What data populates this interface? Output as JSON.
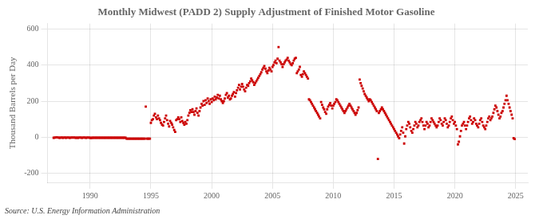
{
  "chart_data": {
    "type": "scatter",
    "title": "Monthly Midwest (PADD 2) Supply Adjustment of Finished Motor Gasoline",
    "ylabel": "Thousand Barrels per Day",
    "annotation": "Source: U.S. Energy Information Administration",
    "color": "#cc0000",
    "marker": "square",
    "grid": true,
    "xlim": [
      1986.5,
      2026
    ],
    "ylim": [
      -250,
      630
    ],
    "xticks": [
      1990,
      1995,
      2000,
      2005,
      2010,
      2015,
      2020,
      2025
    ],
    "yticks": [
      -200,
      0,
      200,
      400,
      600
    ],
    "x": [
      1987.0,
      1987.08,
      1987.17,
      1987.25,
      1987.33,
      1987.42,
      1987.5,
      1987.58,
      1987.67,
      1987.75,
      1987.83,
      1987.92,
      1988.0,
      1988.08,
      1988.17,
      1988.25,
      1988.33,
      1988.42,
      1988.5,
      1988.58,
      1988.67,
      1988.75,
      1988.83,
      1988.92,
      1989.0,
      1989.08,
      1989.17,
      1989.25,
      1989.33,
      1989.42,
      1989.5,
      1989.58,
      1989.67,
      1989.75,
      1989.83,
      1989.92,
      1990.0,
      1990.08,
      1990.17,
      1990.25,
      1990.33,
      1990.42,
      1990.5,
      1990.58,
      1990.67,
      1990.75,
      1990.83,
      1990.92,
      1991.0,
      1991.08,
      1991.17,
      1991.25,
      1991.33,
      1991.42,
      1991.5,
      1991.58,
      1991.67,
      1991.75,
      1991.83,
      1991.92,
      1992.0,
      1992.08,
      1992.17,
      1992.25,
      1992.33,
      1992.42,
      1992.5,
      1992.58,
      1992.67,
      1992.75,
      1992.83,
      1992.92,
      1993.0,
      1993.08,
      1993.17,
      1993.25,
      1993.33,
      1993.42,
      1993.5,
      1993.58,
      1993.67,
      1993.75,
      1993.83,
      1993.92,
      1994.0,
      1994.08,
      1994.17,
      1994.25,
      1994.33,
      1994.42,
      1994.5,
      1994.58,
      1994.67,
      1994.75,
      1994.83,
      1994.92,
      1995.0,
      1995.08,
      1995.17,
      1995.25,
      1995.33,
      1995.42,
      1995.5,
      1995.58,
      1995.67,
      1995.75,
      1995.83,
      1995.92,
      1996.0,
      1996.08,
      1996.17,
      1996.25,
      1996.33,
      1996.42,
      1996.5,
      1996.58,
      1996.67,
      1996.75,
      1996.83,
      1996.92,
      1997.0,
      1997.08,
      1997.17,
      1997.25,
      1997.33,
      1997.42,
      1997.5,
      1997.58,
      1997.67,
      1997.75,
      1997.83,
      1997.92,
      1998.0,
      1998.08,
      1998.17,
      1998.25,
      1998.33,
      1998.42,
      1998.5,
      1998.58,
      1998.67,
      1998.75,
      1998.83,
      1998.92,
      1999.0,
      1999.08,
      1999.17,
      1999.25,
      1999.33,
      1999.42,
      1999.5,
      1999.58,
      1999.67,
      1999.75,
      1999.83,
      1999.92,
      2000.0,
      2000.08,
      2000.17,
      2000.25,
      2000.33,
      2000.42,
      2000.5,
      2000.58,
      2000.67,
      2000.75,
      2000.83,
      2000.92,
      2001.0,
      2001.08,
      2001.17,
      2001.25,
      2001.33,
      2001.42,
      2001.5,
      2001.58,
      2001.67,
      2001.75,
      2001.83,
      2001.92,
      2002.0,
      2002.08,
      2002.17,
      2002.25,
      2002.33,
      2002.42,
      2002.5,
      2002.58,
      2002.67,
      2002.75,
      2002.83,
      2002.92,
      2003.0,
      2003.08,
      2003.17,
      2003.25,
      2003.33,
      2003.42,
      2003.5,
      2003.58,
      2003.67,
      2003.75,
      2003.83,
      2003.92,
      2004.0,
      2004.08,
      2004.17,
      2004.25,
      2004.33,
      2004.42,
      2004.5,
      2004.58,
      2004.67,
      2004.75,
      2004.83,
      2004.92,
      2005.0,
      2005.08,
      2005.17,
      2005.25,
      2005.33,
      2005.42,
      2005.5,
      2005.58,
      2005.67,
      2005.75,
      2005.83,
      2005.92,
      2006.0,
      2006.08,
      2006.17,
      2006.25,
      2006.33,
      2006.42,
      2006.5,
      2006.58,
      2006.67,
      2006.75,
      2006.83,
      2006.92,
      2007.0,
      2007.08,
      2007.17,
      2007.25,
      2007.33,
      2007.42,
      2007.5,
      2007.58,
      2007.67,
      2007.75,
      2007.83,
      2007.92,
      2008.0,
      2008.08,
      2008.17,
      2008.25,
      2008.33,
      2008.42,
      2008.5,
      2008.58,
      2008.67,
      2008.75,
      2008.83,
      2008.92,
      2009.0,
      2009.08,
      2009.17,
      2009.25,
      2009.33,
      2009.42,
      2009.5,
      2009.58,
      2009.67,
      2009.75,
      2009.83,
      2009.92,
      2010.0,
      2010.08,
      2010.17,
      2010.25,
      2010.33,
      2010.42,
      2010.5,
      2010.58,
      2010.67,
      2010.75,
      2010.83,
      2010.92,
      2011.0,
      2011.08,
      2011.17,
      2011.25,
      2011.33,
      2011.42,
      2011.5,
      2011.58,
      2011.67,
      2011.75,
      2011.83,
      2011.92,
      2012.0,
      2012.08,
      2012.17,
      2012.25,
      2012.33,
      2012.42,
      2012.5,
      2012.58,
      2012.67,
      2012.75,
      2012.83,
      2012.92,
      2013.0,
      2013.08,
      2013.17,
      2013.25,
      2013.33,
      2013.42,
      2013.5,
      2013.58,
      2013.67,
      2013.75,
      2013.83,
      2013.92,
      2014.0,
      2014.08,
      2014.17,
      2014.25,
      2014.33,
      2014.42,
      2014.5,
      2014.58,
      2014.67,
      2014.75,
      2014.83,
      2014.92,
      2015.0,
      2015.08,
      2015.17,
      2015.25,
      2015.33,
      2015.42,
      2015.5,
      2015.58,
      2015.67,
      2015.75,
      2015.83,
      2015.92,
      2016.0,
      2016.08,
      2016.17,
      2016.25,
      2016.33,
      2016.42,
      2016.5,
      2016.58,
      2016.67,
      2016.75,
      2016.83,
      2016.92,
      2017.0,
      2017.08,
      2017.17,
      2017.25,
      2017.33,
      2017.42,
      2017.5,
      2017.58,
      2017.67,
      2017.75,
      2017.83,
      2017.92,
      2018.0,
      2018.08,
      2018.17,
      2018.25,
      2018.33,
      2018.42,
      2018.5,
      2018.58,
      2018.67,
      2018.75,
      2018.83,
      2018.92,
      2019.0,
      2019.08,
      2019.17,
      2019.25,
      2019.33,
      2019.42,
      2019.5,
      2019.58,
      2019.67,
      2019.75,
      2019.83,
      2019.92,
      2020.0,
      2020.08,
      2020.17,
      2020.25,
      2020.33,
      2020.42,
      2020.5,
      2020.58,
      2020.67,
      2020.75,
      2020.83,
      2020.92,
      2021.0,
      2021.08,
      2021.17,
      2021.25,
      2021.33,
      2021.42,
      2021.5,
      2021.58,
      2021.67,
      2021.75,
      2021.83,
      2021.92,
      2022.0,
      2022.08,
      2022.17,
      2022.25,
      2022.33,
      2022.42,
      2022.5,
      2022.58,
      2022.67,
      2022.75,
      2022.83,
      2022.92,
      2023.0,
      2023.08,
      2023.17,
      2023.25,
      2023.33,
      2023.42,
      2023.5,
      2023.58,
      2023.67,
      2023.75,
      2023.83,
      2023.92,
      2024.0,
      2024.08,
      2024.17,
      2024.25,
      2024.33,
      2024.42,
      2024.5,
      2024.58,
      2024.67,
      2024.75,
      2024.83,
      2024.92
    ],
    "values": [
      -3,
      -2,
      -1,
      0,
      -1,
      -2,
      -3,
      -2,
      -1,
      -3,
      -2,
      -1,
      -3,
      -2,
      -1,
      -2,
      -3,
      -2,
      -1,
      -2,
      -1,
      -2,
      -3,
      -2,
      -3,
      -2,
      -1,
      -2,
      -3,
      -2,
      -1,
      -2,
      -3,
      -2,
      -1,
      -2,
      -3,
      -4,
      -3,
      -2,
      -3,
      -2,
      -3,
      -2,
      -3,
      -2,
      -3,
      -2,
      -3,
      -2,
      -3,
      -2,
      -3,
      -2,
      -3,
      -2,
      -3,
      -2,
      -3,
      -2,
      -3,
      -2,
      -3,
      -2,
      -3,
      -2,
      -3,
      -2,
      -3,
      -2,
      -3,
      -2,
      -8,
      -8,
      -8,
      -8,
      -8,
      -8,
      -8,
      -8,
      -8,
      -8,
      -8,
      -8,
      -8,
      -8,
      -8,
      -8,
      -8,
      -8,
      -8,
      170,
      -8,
      -8,
      -8,
      -8,
      80,
      95,
      100,
      120,
      130,
      110,
      100,
      120,
      105,
      95,
      80,
      70,
      65,
      85,
      105,
      120,
      95,
      75,
      60,
      90,
      80,
      70,
      55,
      40,
      30,
      95,
      100,
      110,
      100,
      85,
      110,
      90,
      80,
      70,
      85,
      75,
      95,
      120,
      135,
      150,
      140,
      155,
      140,
      125,
      145,
      160,
      135,
      120,
      145,
      165,
      185,
      175,
      200,
      180,
      205,
      190,
      215,
      200,
      185,
      210,
      195,
      215,
      205,
      225,
      210,
      220,
      235,
      215,
      230,
      210,
      200,
      190,
      200,
      215,
      235,
      245,
      220,
      230,
      210,
      215,
      230,
      240,
      250,
      225,
      245,
      260,
      275,
      290,
      265,
      280,
      295,
      280,
      265,
      255,
      275,
      290,
      285,
      300,
      310,
      325,
      315,
      305,
      290,
      300,
      310,
      320,
      330,
      340,
      350,
      360,
      375,
      385,
      395,
      380,
      365,
      355,
      370,
      385,
      375,
      365,
      390,
      400,
      415,
      425,
      410,
      435,
      500,
      425,
      415,
      405,
      390,
      405,
      415,
      425,
      430,
      440,
      425,
      415,
      405,
      400,
      410,
      425,
      435,
      440,
      355,
      365,
      375,
      390,
      345,
      335,
      350,
      365,
      355,
      345,
      335,
      325,
      210,
      205,
      195,
      185,
      175,
      165,
      155,
      145,
      135,
      125,
      115,
      105,
      195,
      180,
      165,
      155,
      140,
      130,
      155,
      170,
      180,
      190,
      175,
      160,
      175,
      185,
      195,
      210,
      205,
      195,
      185,
      175,
      165,
      155,
      145,
      135,
      145,
      155,
      165,
      175,
      185,
      175,
      165,
      155,
      145,
      135,
      125,
      135,
      150,
      165,
      320,
      300,
      285,
      270,
      255,
      240,
      230,
      220,
      210,
      200,
      210,
      205,
      195,
      185,
      175,
      165,
      155,
      145,
      -120,
      135,
      145,
      155,
      165,
      155,
      145,
      135,
      125,
      115,
      105,
      95,
      85,
      75,
      65,
      55,
      45,
      35,
      25,
      15,
      5,
      -5,
      15,
      35,
      55,
      25,
      -35,
      5,
      45,
      65,
      85,
      75,
      55,
      35,
      25,
      45,
      65,
      85,
      75,
      55,
      65,
      85,
      95,
      105,
      85,
      65,
      45,
      65,
      85,
      75,
      55,
      65,
      85,
      105,
      95,
      85,
      75,
      65,
      55,
      65,
      85,
      105,
      95,
      75,
      65,
      85,
      105,
      95,
      75,
      55,
      65,
      85,
      105,
      115,
      95,
      75,
      85,
      65,
      45,
      -40,
      -25,
      5,
      35,
      65,
      75,
      85,
      65,
      45,
      65,
      85,
      105,
      115,
      95,
      75,
      85,
      105,
      95,
      75,
      65,
      55,
      75,
      95,
      105,
      85,
      65,
      55,
      45,
      65,
      85,
      105,
      115,
      95,
      105,
      115,
      135,
      155,
      175,
      165,
      145,
      125,
      105,
      115,
      135,
      145,
      165,
      185,
      205,
      230,
      205,
      185,
      165,
      145,
      125,
      105,
      -5,
      -10
    ]
  }
}
